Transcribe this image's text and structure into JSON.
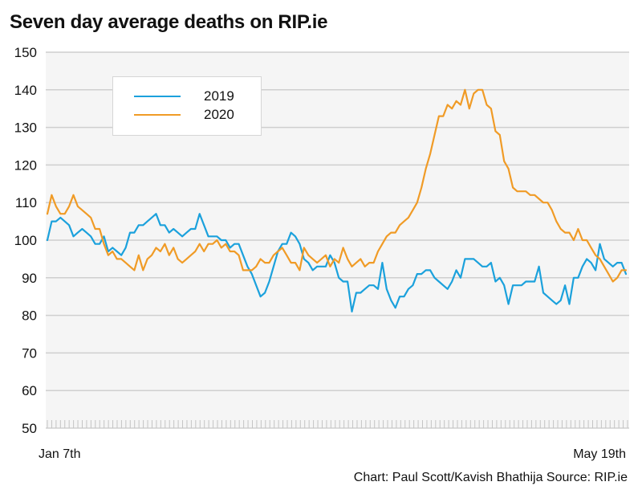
{
  "title": "Seven day average deaths on RIP.ie",
  "credit": "Chart: Paul Scott/Kavish Bhathija Source: RIP.ie",
  "chart_data": {
    "type": "line",
    "title": "Seven day average deaths on RIP.ie",
    "xlabel": "",
    "ylabel": "",
    "x_start_label": "Jan 7th",
    "x_end_label": "May 19th",
    "ylim": [
      50,
      150
    ],
    "yticks": [
      50,
      60,
      70,
      80,
      90,
      100,
      110,
      120,
      130,
      140,
      150
    ],
    "grid": true,
    "legend_position": "top-left",
    "series": [
      {
        "name": "2019",
        "color": "#1ba1dc",
        "values": [
          100,
          105,
          105,
          106,
          105,
          104,
          101,
          102,
          103,
          102,
          101,
          99,
          99,
          101,
          97,
          98,
          97,
          96,
          98,
          102,
          102,
          104,
          104,
          105,
          106,
          107,
          104,
          104,
          102,
          103,
          102,
          101,
          102,
          103,
          103,
          107,
          104,
          101,
          101,
          101,
          100,
          100,
          98,
          99,
          99,
          96,
          93,
          91,
          88,
          85,
          86,
          89,
          93,
          97,
          99,
          99,
          102,
          101,
          99,
          95,
          94,
          92,
          93,
          93,
          93,
          96,
          94,
          90,
          89,
          89,
          81,
          86,
          86,
          87,
          88,
          88,
          87,
          94,
          87,
          84,
          82,
          85,
          85,
          87,
          88,
          91,
          91,
          92,
          92,
          90,
          89,
          88,
          87,
          89,
          92,
          90,
          95,
          95,
          95,
          94,
          93,
          93,
          94,
          89,
          90,
          88,
          83,
          88,
          88,
          88,
          89,
          89,
          89,
          93,
          86,
          85,
          84,
          83,
          84,
          88,
          83,
          90,
          90,
          93,
          95,
          94,
          92,
          99,
          95,
          94,
          93,
          94,
          94,
          91
        ]
      },
      {
        "name": "2020",
        "color": "#f09b26",
        "values": [
          107,
          112,
          109,
          107,
          107,
          109,
          112,
          109,
          108,
          107,
          106,
          103,
          103,
          99,
          96,
          97,
          95,
          95,
          94,
          93,
          92,
          96,
          92,
          95,
          96,
          98,
          97,
          99,
          96,
          98,
          95,
          94,
          95,
          96,
          97,
          99,
          97,
          99,
          99,
          100,
          98,
          99,
          97,
          97,
          96,
          92,
          92,
          92,
          93,
          95,
          94,
          94,
          96,
          97,
          98,
          96,
          94,
          94,
          92,
          98,
          96,
          95,
          94,
          95,
          96,
          93,
          95,
          94,
          98,
          95,
          93,
          94,
          95,
          93,
          94,
          94,
          97,
          99,
          101,
          102,
          102,
          104,
          105,
          106,
          108,
          110,
          114,
          119,
          123,
          128,
          133,
          133,
          136,
          135,
          137,
          136,
          140,
          135,
          139,
          140,
          140,
          136,
          135,
          129,
          128,
          121,
          119,
          114,
          113,
          113,
          113,
          112,
          112,
          111,
          110,
          110,
          108,
          105,
          103,
          102,
          102,
          100,
          103,
          100,
          100,
          98,
          96,
          95,
          93,
          91,
          89,
          90,
          92,
          92
        ]
      }
    ]
  }
}
